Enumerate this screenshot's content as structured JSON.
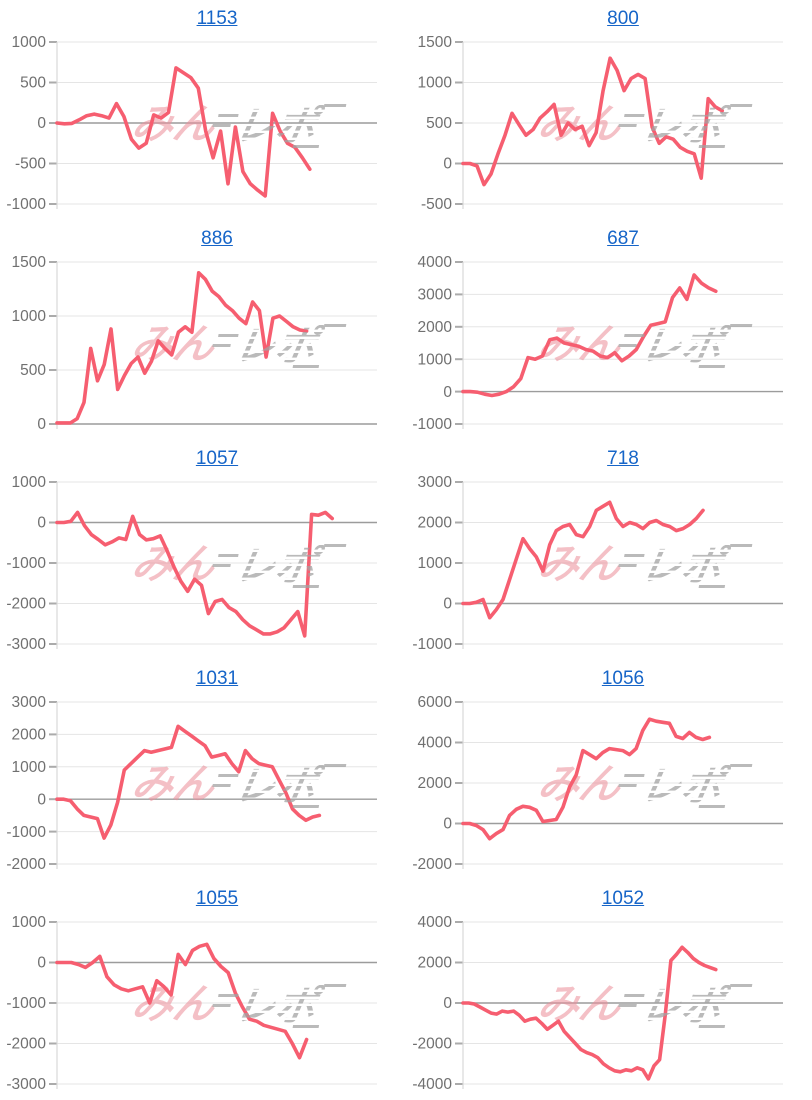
{
  "page": {
    "background": "#ffffff"
  },
  "styles": {
    "line_color": "#F65E70",
    "grid_color": "#E5E5E5",
    "zero_line_color": "#9C9C9C",
    "axis_line_color": "#D8D8D8",
    "tick_mark_color": "#ABABAB",
    "tick_label_color": "#707070",
    "title_color": "#1665C8"
  },
  "watermark": {
    "pink_text": "みん",
    "gray_text": "レポ",
    "pink_color": "#EC8D99",
    "gray_color": "#A3A3A3"
  },
  "chart_data": [
    {
      "type": "line",
      "title": "1153",
      "ylim": [
        -1000,
        1000
      ],
      "yticks": [
        1000,
        500,
        0,
        -500,
        -1000
      ],
      "span": 0.79,
      "grid": "horizontal",
      "x_labels_visible": false,
      "legend": "none",
      "values": [
        0,
        -10,
        -5,
        40,
        90,
        110,
        90,
        60,
        240,
        80,
        -200,
        -310,
        -250,
        100,
        60,
        130,
        680,
        620,
        560,
        430,
        -100,
        -430,
        -100,
        -750,
        -50,
        -600,
        -750,
        -830,
        -900,
        120,
        -100,
        -250,
        -300,
        -430,
        -570
      ]
    },
    {
      "type": "line",
      "title": "800",
      "ylim": [
        -500,
        1500
      ],
      "yticks": [
        1500,
        1000,
        500,
        0,
        -500
      ],
      "span": 0.81,
      "grid": "horizontal",
      "x_labels_visible": false,
      "legend": "none",
      "values": [
        0,
        0,
        -30,
        -260,
        -130,
        120,
        350,
        620,
        480,
        350,
        420,
        560,
        640,
        730,
        350,
        500,
        420,
        460,
        220,
        380,
        900,
        1300,
        1150,
        900,
        1050,
        1100,
        1050,
        450,
        250,
        330,
        300,
        200,
        150,
        120,
        -180,
        800,
        700,
        650
      ]
    },
    {
      "type": "line",
      "title": "886",
      "ylim": [
        0,
        1500
      ],
      "yticks": [
        1500,
        1000,
        500,
        0
      ],
      "span": 0.78,
      "grid": "horizontal",
      "x_labels_visible": false,
      "legend": "none",
      "values": [
        10,
        10,
        10,
        50,
        200,
        700,
        400,
        550,
        880,
        320,
        450,
        560,
        620,
        470,
        580,
        770,
        700,
        640,
        850,
        900,
        850,
        1400,
        1340,
        1230,
        1180,
        1100,
        1050,
        980,
        930,
        1130,
        1050,
        620,
        980,
        1000,
        950,
        900,
        870,
        860
      ]
    },
    {
      "type": "line",
      "title": "687",
      "ylim": [
        -1000,
        4000
      ],
      "yticks": [
        4000,
        3000,
        2000,
        1000,
        0,
        -1000
      ],
      "span": 0.79,
      "grid": "horizontal",
      "x_labels_visible": false,
      "legend": "none",
      "values": [
        0,
        0,
        -20,
        -80,
        -120,
        -80,
        0,
        150,
        400,
        1050,
        1000,
        1100,
        1600,
        1650,
        1500,
        1450,
        1400,
        1300,
        1250,
        1100,
        1050,
        1200,
        950,
        1100,
        1300,
        1700,
        2050,
        2100,
        2150,
        2900,
        3200,
        2850,
        3600,
        3350,
        3200,
        3100
      ]
    },
    {
      "type": "line",
      "title": "1057",
      "ylim": [
        -3000,
        1000
      ],
      "yticks": [
        1000,
        0,
        -1000,
        -2000,
        -3000
      ],
      "span": 0.86,
      "grid": "horizontal",
      "x_labels_visible": false,
      "legend": "none",
      "values": [
        0,
        0,
        30,
        250,
        -80,
        -300,
        -420,
        -550,
        -480,
        -380,
        -420,
        150,
        -300,
        -430,
        -400,
        -330,
        -700,
        -1100,
        -1450,
        -1700,
        -1400,
        -1550,
        -2250,
        -1950,
        -1900,
        -2100,
        -2200,
        -2400,
        -2550,
        -2650,
        -2750,
        -2750,
        -2700,
        -2600,
        -2400,
        -2200,
        -2800,
        200,
        180,
        250,
        100
      ]
    },
    {
      "type": "line",
      "title": "718",
      "ylim": [
        -1000,
        3000
      ],
      "yticks": [
        3000,
        2000,
        1000,
        0,
        -1000
      ],
      "span": 0.75,
      "grid": "horizontal",
      "x_labels_visible": false,
      "legend": "none",
      "values": [
        0,
        0,
        30,
        100,
        -350,
        -150,
        100,
        600,
        1100,
        1600,
        1350,
        1150,
        800,
        1450,
        1800,
        1900,
        1950,
        1700,
        1650,
        1900,
        2300,
        2400,
        2500,
        2100,
        1900,
        2000,
        1950,
        1850,
        2000,
        2050,
        1950,
        1900,
        1800,
        1850,
        1950,
        2100,
        2300
      ]
    },
    {
      "type": "line",
      "title": "1031",
      "ylim": [
        -2000,
        3000
      ],
      "yticks": [
        3000,
        2000,
        1000,
        0,
        -1000,
        -2000
      ],
      "span": 0.82,
      "grid": "horizontal",
      "x_labels_visible": false,
      "legend": "none",
      "values": [
        0,
        0,
        -50,
        -300,
        -500,
        -550,
        -600,
        -1200,
        -800,
        -100,
        900,
        1100,
        1300,
        1500,
        1450,
        1500,
        1550,
        1600,
        2250,
        2100,
        1950,
        1800,
        1650,
        1300,
        1350,
        1400,
        1100,
        850,
        1500,
        1250,
        1100,
        1050,
        1000,
        600,
        200,
        -300,
        -500,
        -650,
        -550,
        -500
      ]
    },
    {
      "type": "line",
      "title": "1056",
      "ylim": [
        -2000,
        6000
      ],
      "yticks": [
        6000,
        4000,
        2000,
        0,
        -2000
      ],
      "span": 0.77,
      "grid": "horizontal",
      "x_labels_visible": false,
      "legend": "none",
      "values": [
        0,
        0,
        -100,
        -300,
        -750,
        -500,
        -300,
        400,
        700,
        850,
        800,
        650,
        100,
        150,
        200,
        800,
        1800,
        2400,
        3600,
        3400,
        3200,
        3500,
        3700,
        3650,
        3600,
        3400,
        3700,
        4600,
        5150,
        5050,
        5000,
        4950,
        4300,
        4200,
        4500,
        4250,
        4150,
        4250
      ]
    },
    {
      "type": "line",
      "title": "1055",
      "ylim": [
        -3000,
        1000
      ],
      "yticks": [
        1000,
        0,
        -1000,
        -2000,
        -3000
      ],
      "span": 0.78,
      "grid": "horizontal",
      "x_labels_visible": false,
      "legend": "none",
      "values": [
        0,
        0,
        0,
        -50,
        -120,
        0,
        150,
        -350,
        -550,
        -650,
        -700,
        -650,
        -600,
        -1000,
        -450,
        -600,
        -800,
        200,
        -50,
        300,
        400,
        450,
        100,
        -100,
        -250,
        -750,
        -1100,
        -1400,
        -1450,
        -1550,
        -1600,
        -1650,
        -1700,
        -2000,
        -2350,
        -1900
      ]
    },
    {
      "type": "line",
      "title": "1052",
      "ylim": [
        -4000,
        4000
      ],
      "yticks": [
        4000,
        2000,
        0,
        -2000,
        -4000
      ],
      "span": 0.79,
      "grid": "horizontal",
      "x_labels_visible": false,
      "legend": "none",
      "values": [
        0,
        0,
        -50,
        -200,
        -350,
        -500,
        -550,
        -400,
        -450,
        -400,
        -600,
        -900,
        -800,
        -750,
        -1000,
        -1300,
        -1100,
        -900,
        -1400,
        -1700,
        -2000,
        -2300,
        -2450,
        -2550,
        -2700,
        -3000,
        -3200,
        -3350,
        -3400,
        -3300,
        -3350,
        -3200,
        -3300,
        -3750,
        -3100,
        -2800,
        -600,
        2100,
        2400,
        2750,
        2500,
        2200,
        2000,
        1850,
        1750,
        1650
      ]
    }
  ]
}
